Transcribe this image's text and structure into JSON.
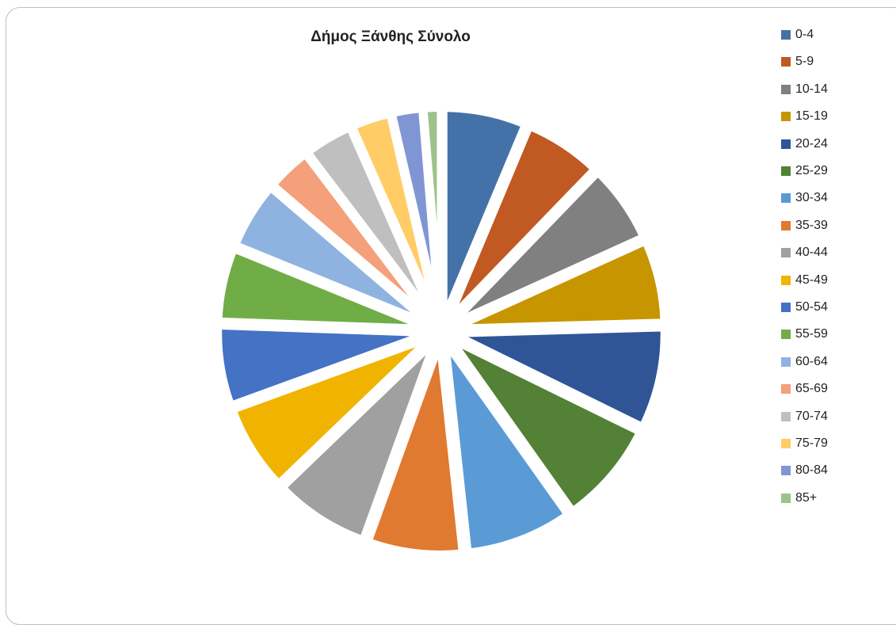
{
  "chart_data": {
    "type": "pie",
    "title": "Δήμος Ξάνθης Σύνολο",
    "legend_position": "right",
    "exploded": true,
    "categories": [
      "0-4",
      "5-9",
      "10-14",
      "15-19",
      "20-24",
      "25-29",
      "30-34",
      "35-39",
      "40-44",
      "45-49",
      "50-54",
      "55-59",
      "60-64",
      "65-69",
      "70-74",
      "75-79",
      "80-84",
      "85+"
    ],
    "values": [
      6.3,
      5.9,
      6.0,
      6.3,
      7.7,
      7.9,
      8.1,
      7.2,
      7.3,
      6.6,
      6.1,
      5.6,
      5.1,
      3.4,
      3.7,
      3.0,
      2.3,
      1.3
    ],
    "colors": [
      "#4472a8",
      "#c05a22",
      "#808080",
      "#c79500",
      "#2f5597",
      "#538135",
      "#5b9bd5",
      "#e07a30",
      "#a0a0a0",
      "#f0b400",
      "#4472c4",
      "#70ad47",
      "#8fb3e0",
      "#f4a07a",
      "#bfbfbf",
      "#ffcc66",
      "#8096d4",
      "#9dc38a"
    ]
  }
}
